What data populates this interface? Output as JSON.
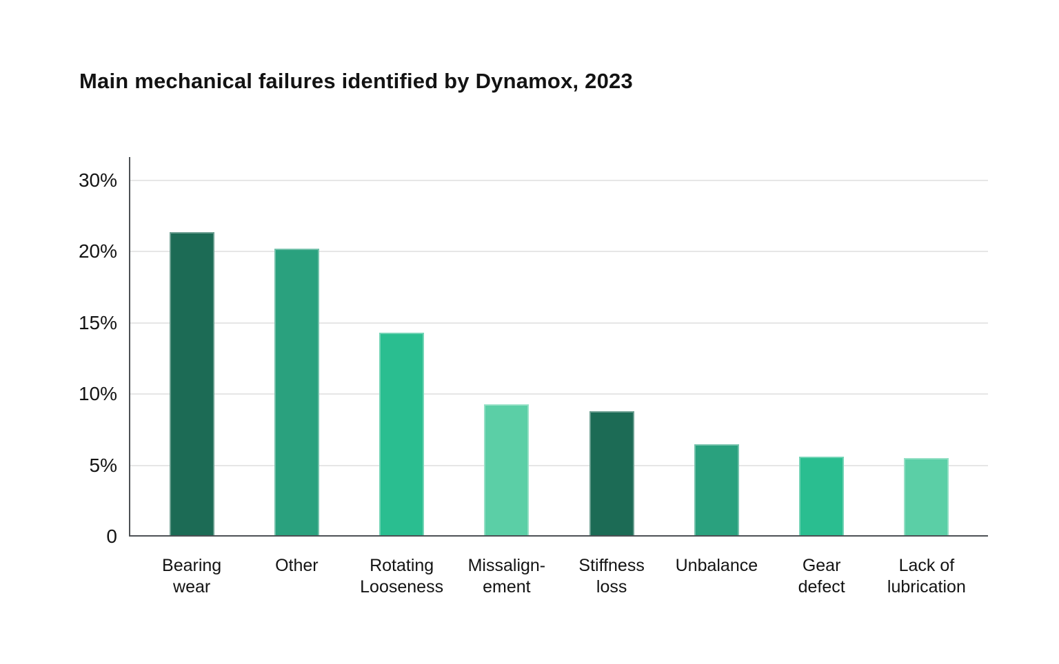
{
  "chart_data": {
    "type": "bar",
    "title": "Main mechanical failures identified by Dynamox, 2023",
    "categories": [
      "Bearing wear",
      "Other",
      "Rotating Looseness",
      "Missalignement",
      "Stiffness loss",
      "Unbalance",
      "Gear defect",
      "Lack of lubrication"
    ],
    "category_label_lines": [
      [
        "Bearing",
        "wear"
      ],
      [
        "Other"
      ],
      [
        "Rotating",
        "Looseness"
      ],
      [
        "Missalign-",
        "ement"
      ],
      [
        "Stiffness",
        "loss"
      ],
      [
        "Unbalance"
      ],
      [
        "Gear",
        "defect"
      ],
      [
        "Lack of",
        "lubrication"
      ]
    ],
    "values": [
      21.3,
      20.1,
      14.2,
      9.2,
      8.7,
      6.4,
      5.5,
      5.4
    ],
    "unit": "%",
    "bar_colors": [
      "#1C6B55",
      "#2AA17E",
      "#2ABE90",
      "#5BCFA6",
      "#1C6B55",
      "#2AA17E",
      "#2ABE90",
      "#5BCFA6"
    ],
    "palette": {
      "dark_green": "#1C6B55",
      "medium_green": "#2AA17E",
      "bright_green": "#2ABE90",
      "light_green": "#5BCFA6"
    },
    "y_tick_labels": [
      "30%",
      "20%",
      "15%",
      "10%",
      "5%",
      "0"
    ],
    "ylim": [
      0,
      30
    ],
    "xlabel": "",
    "ylabel": "",
    "grid": true,
    "legend": false,
    "axis_color": "#4C5054",
    "gridline_color": "#E6E6E6",
    "text_color": "#131313",
    "background_color": "#FFFFFF"
  }
}
